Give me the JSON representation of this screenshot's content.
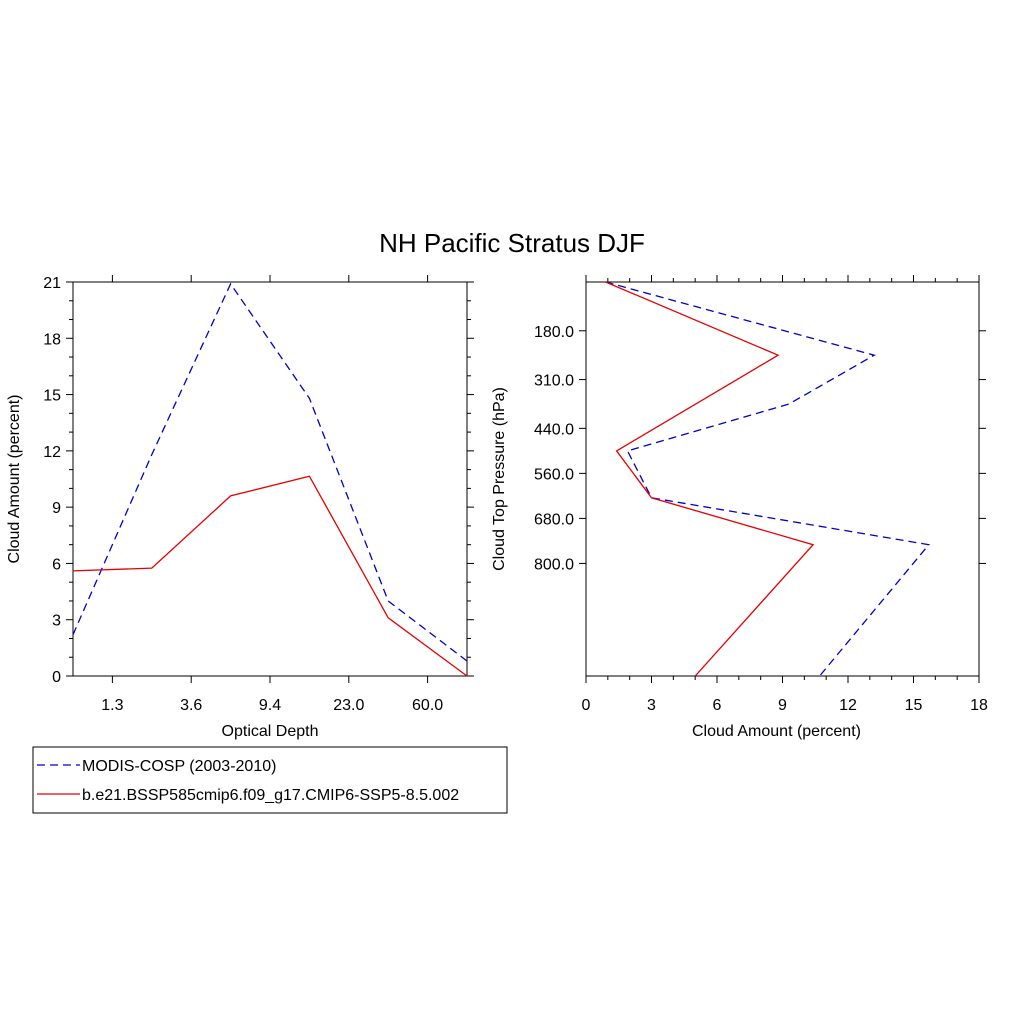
{
  "title": "NH Pacific Stratus DJF",
  "colors": {
    "obs": "#0000cc",
    "model": "#e60000",
    "axis": "#000000"
  },
  "legend": {
    "items": [
      {
        "label": "MODIS-COSP (2003-2010)",
        "style": "dashed",
        "color": "#0000cc"
      },
      {
        "label": "b.e21.BSSP585cmip6.f09_g17.CMIP6-SSP5-8.5.002",
        "style": "solid",
        "color": "#e60000"
      }
    ]
  },
  "chart_data": [
    {
      "type": "line",
      "xlabel": "Optical Depth",
      "ylabel": "Cloud Amount (percent)",
      "ylim": [
        0,
        21
      ],
      "yticks": [
        0,
        3,
        6,
        9,
        12,
        15,
        18,
        21
      ],
      "xlim": [
        0,
        10
      ],
      "xticks": [
        {
          "pos": 1,
          "label": "1.3"
        },
        {
          "pos": 3,
          "label": "3.6"
        },
        {
          "pos": 5,
          "label": "9.4"
        },
        {
          "pos": 7,
          "label": "23.0"
        },
        {
          "pos": 9,
          "label": "60.0"
        }
      ],
      "series": [
        {
          "name": "MODIS-COSP (2003-2010)",
          "style": "dashed",
          "color": "#0000cc",
          "x": [
            0,
            2,
            4,
            6,
            8,
            10
          ],
          "y": [
            2.2,
            11.8,
            20.9,
            14.8,
            4.0,
            0.8
          ]
        },
        {
          "name": "b.e21.BSSP585cmip6.f09_g17.CMIP6-SSP5-8.5.002",
          "style": "solid",
          "color": "#e60000",
          "x": [
            0,
            2,
            4,
            6,
            8,
            10
          ],
          "y": [
            5.6,
            5.75,
            9.6,
            10.65,
            3.1,
            0.0
          ]
        }
      ]
    },
    {
      "type": "line",
      "xlabel": "Cloud Amount (percent)",
      "ylabel": "Cloud Top Pressure (hPa)",
      "xlim": [
        0,
        18
      ],
      "xticks": [
        0,
        3,
        6,
        9,
        12,
        15,
        18
      ],
      "ylim": [
        50,
        1100
      ],
      "yticks": [
        {
          "pos": 180,
          "label": "180.0"
        },
        {
          "pos": 310,
          "label": "310.0"
        },
        {
          "pos": 440,
          "label": "440.0"
        },
        {
          "pos": 560,
          "label": "560.0"
        },
        {
          "pos": 680,
          "label": "680.0"
        },
        {
          "pos": 800,
          "label": "800.0"
        }
      ],
      "series": [
        {
          "name": "MODIS-COSP (2003-2010)",
          "style": "dashed",
          "color": "#0000cc",
          "x": [
            0.9,
            13.2,
            9.3,
            1.9,
            3.0,
            15.7,
            10.7
          ],
          "y": [
            50,
            245,
            375,
            500,
            625,
            750,
            1100
          ]
        },
        {
          "name": "b.e21.BSSP585cmip6.f09_g17.CMIP6-SSP5-8.5.002",
          "style": "solid",
          "color": "#e60000",
          "x": [
            0.9,
            8.8,
            1.4,
            3.0,
            10.4,
            5.0
          ],
          "y": [
            50,
            245,
            500,
            625,
            750,
            1100
          ]
        }
      ]
    }
  ]
}
